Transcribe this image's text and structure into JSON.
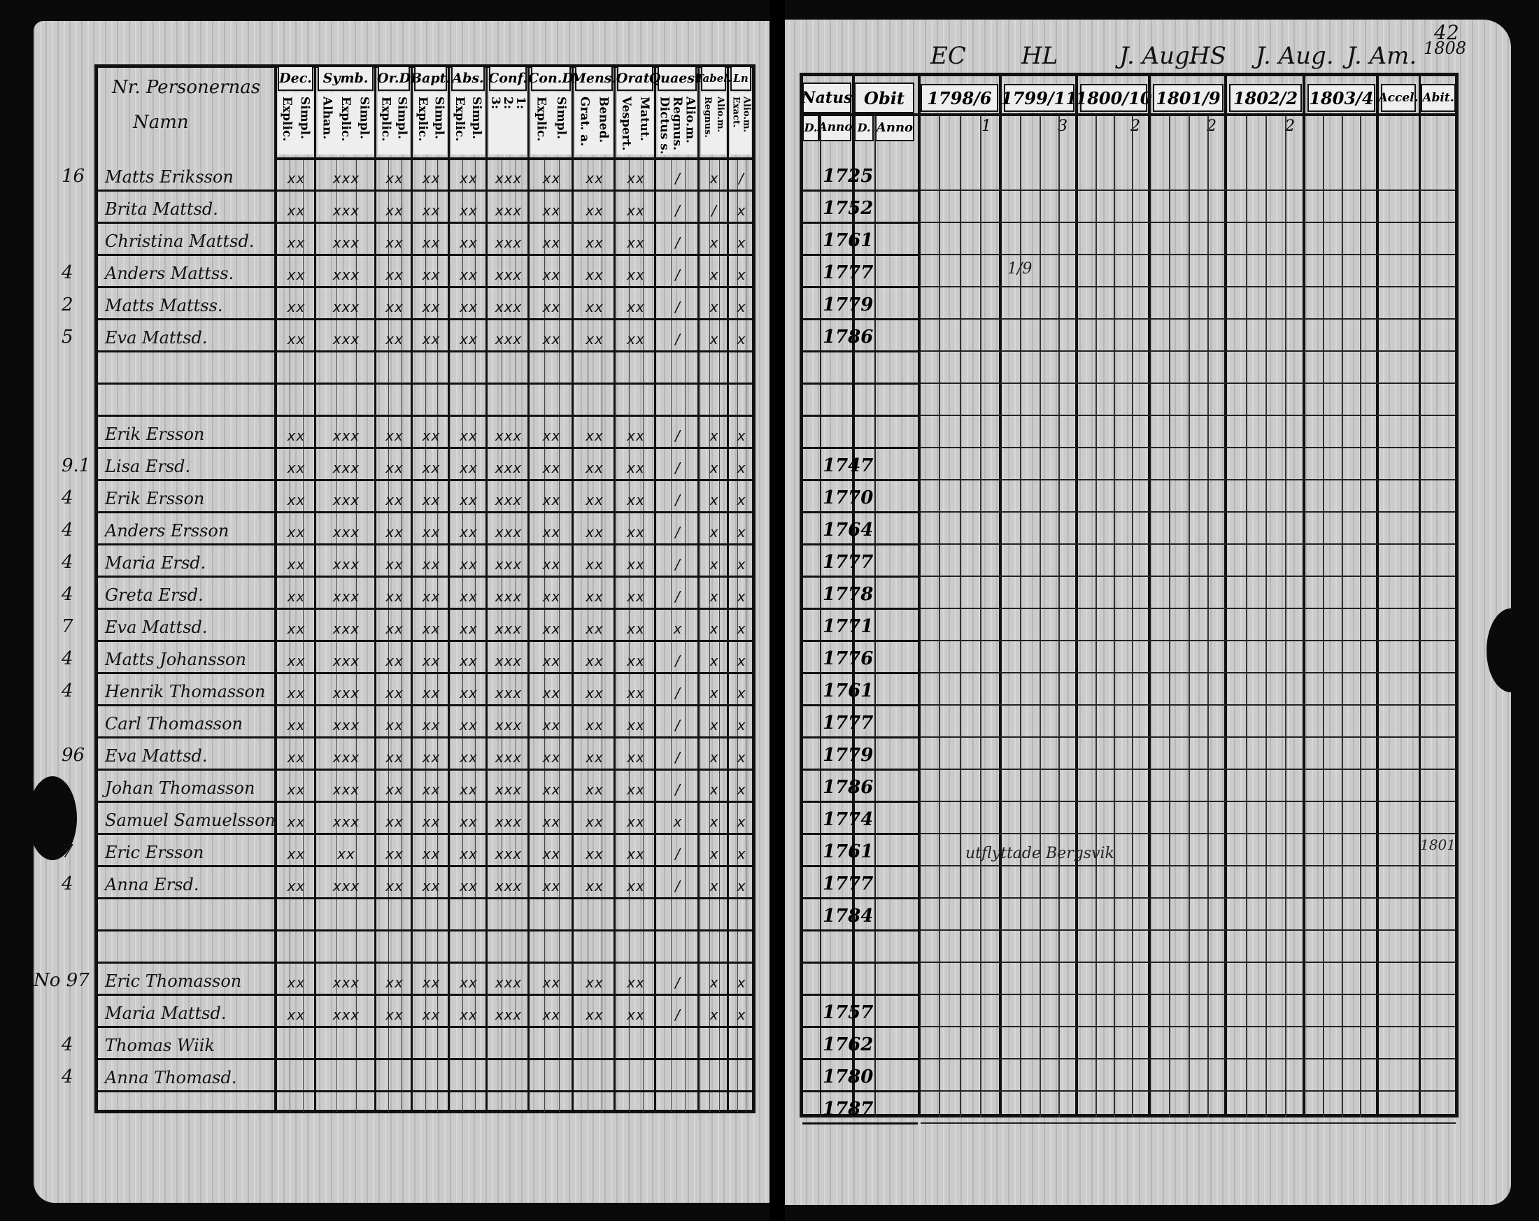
{
  "left_page": {
    "name_header": [
      "Nr. Personernas",
      "Namn"
    ],
    "columns": [
      {
        "head": "Dec.",
        "sub": [
          "Explic.",
          "Simpl."
        ]
      },
      {
        "head": "Symb.",
        "sub": [
          "Alhan.",
          "Explic.",
          "Simpl."
        ]
      },
      {
        "head": "Or.D",
        "sub": [
          "Explic.",
          "Simpl."
        ]
      },
      {
        "head": "Bapt.",
        "sub": [
          "Explic.",
          "Simpl."
        ]
      },
      {
        "head": "Abs.",
        "sub": [
          "Explic.",
          "Simpl."
        ]
      },
      {
        "head": "Conf.",
        "sub": [
          "3:",
          "2:",
          "1:"
        ]
      },
      {
        "head": "Con.D",
        "sub": [
          "Explic.",
          "Simpl."
        ]
      },
      {
        "head": "Mens.",
        "sub": [
          "Grat. a.",
          "Bened."
        ]
      },
      {
        "head": "Orat.",
        "sub": [
          "Vespert.",
          "Matut."
        ]
      },
      {
        "head": "Quaest.",
        "sub": [
          "Dictus s.",
          "Regnus.",
          "Alio.m."
        ]
      },
      {
        "head": "Tabel.",
        "sub": [
          "Regnus.",
          "Alio.m."
        ]
      },
      {
        "head": "Ln",
        "sub": [
          "Exact.",
          "Alio.m."
        ]
      }
    ],
    "rows": [
      {
        "margin": "16",
        "name": "Matts Eriksson",
        "marks": [
          "xx",
          "xxx",
          "xx",
          "xx",
          "xx",
          "xxx",
          "xx",
          "xx",
          "xx",
          "/",
          "x",
          "/"
        ]
      },
      {
        "margin": "",
        "name": "Brita Mattsd.",
        "marks": [
          "xx",
          "xxx",
          "xx",
          "xx",
          "xx",
          "xxx",
          "xx",
          "xx",
          "xx",
          "/",
          "/",
          "x"
        ]
      },
      {
        "margin": "",
        "name": "Christina Mattsd.",
        "marks": [
          "xx",
          "xxx",
          "xx",
          "xx",
          "xx",
          "xxx",
          "xx",
          "xx",
          "xx",
          "/",
          "x",
          "x"
        ]
      },
      {
        "margin": "4",
        "name": "Anders Mattss.",
        "marks": [
          "xx",
          "xxx",
          "xx",
          "xx",
          "xx",
          "xxx",
          "xx",
          "xx",
          "xx",
          "/",
          "x",
          "x"
        ]
      },
      {
        "margin": "2",
        "name": "Matts Mattss.",
        "marks": [
          "xx",
          "xxx",
          "xx",
          "xx",
          "xx",
          "xxx",
          "xx",
          "xx",
          "xx",
          "/",
          "x",
          "x"
        ]
      },
      {
        "margin": "5",
        "name": "Eva Mattsd.",
        "marks": [
          "xx",
          "xxx",
          "xx",
          "xx",
          "xx",
          "xxx",
          "xx",
          "xx",
          "xx",
          "/",
          "x",
          "x"
        ]
      },
      {
        "margin": "",
        "name": "",
        "marks": []
      },
      {
        "margin": "",
        "name": "",
        "marks": []
      },
      {
        "margin": "",
        "name": "Erik Ersson",
        "marks": [
          "xx",
          "xxx",
          "xx",
          "xx",
          "xx",
          "xxx",
          "xx",
          "xx",
          "xx",
          "/",
          "x",
          "x"
        ]
      },
      {
        "margin": "9.1",
        "name": "Lisa Ersd.",
        "marks": [
          "xx",
          "xxx",
          "xx",
          "xx",
          "xx",
          "xxx",
          "xx",
          "xx",
          "xx",
          "/",
          "x",
          "x"
        ]
      },
      {
        "margin": "4",
        "name": "Erik Ersson",
        "marks": [
          "xx",
          "xxx",
          "xx",
          "xx",
          "xx",
          "xxx",
          "xx",
          "xx",
          "xx",
          "/",
          "x",
          "x"
        ]
      },
      {
        "margin": "4",
        "name": "Anders Ersson",
        "marks": [
          "xx",
          "xxx",
          "xx",
          "xx",
          "xx",
          "xxx",
          "xx",
          "xx",
          "xx",
          "/",
          "x",
          "x"
        ]
      },
      {
        "margin": "4",
        "name": "Maria Ersd.",
        "marks": [
          "xx",
          "xxx",
          "xx",
          "xx",
          "xx",
          "xxx",
          "xx",
          "xx",
          "xx",
          "/",
          "x",
          "x"
        ]
      },
      {
        "margin": "4",
        "name": "Greta Ersd.",
        "marks": [
          "xx",
          "xxx",
          "xx",
          "xx",
          "xx",
          "xxx",
          "xx",
          "xx",
          "xx",
          "/",
          "x",
          "x"
        ]
      },
      {
        "margin": "7",
        "name": "Eva Mattsd.",
        "marks": [
          "xx",
          "xxx",
          "xx",
          "xx",
          "xx",
          "xxx",
          "xx",
          "xx",
          "xx",
          "x",
          "x",
          "x"
        ]
      },
      {
        "margin": "4",
        "name": "Matts Johansson",
        "marks": [
          "xx",
          "xxx",
          "xx",
          "xx",
          "xx",
          "xxx",
          "xx",
          "xx",
          "xx",
          "/",
          "x",
          "x"
        ]
      },
      {
        "margin": "4",
        "name": "Henrik Thomasson",
        "marks": [
          "xx",
          "xxx",
          "xx",
          "xx",
          "xx",
          "xxx",
          "xx",
          "xx",
          "xx",
          "/",
          "x",
          "x"
        ]
      },
      {
        "margin": "",
        "name": "Carl Thomasson",
        "marks": [
          "xx",
          "xxx",
          "xx",
          "xx",
          "xx",
          "xxx",
          "xx",
          "xx",
          "xx",
          "/",
          "x",
          "x"
        ]
      },
      {
        "margin": "96",
        "name": "Eva Mattsd.",
        "marks": [
          "xx",
          "xxx",
          "xx",
          "xx",
          "xx",
          "xxx",
          "xx",
          "xx",
          "xx",
          "/",
          "x",
          "x"
        ]
      },
      {
        "margin": "",
        "name": "Johan Thomasson",
        "marks": [
          "xx",
          "xxx",
          "xx",
          "xx",
          "xx",
          "xxx",
          "xx",
          "xx",
          "xx",
          "/",
          "x",
          "x"
        ]
      },
      {
        "margin": "",
        "name": "Samuel Samuelsson",
        "marks": [
          "xx",
          "xxx",
          "xx",
          "xx",
          "xx",
          "xxx",
          "xx",
          "xx",
          "xx",
          "x",
          "x",
          "x"
        ]
      },
      {
        "margin": "7",
        "name": "Eric Ersson",
        "marks": [
          "xx",
          "xx",
          "xx",
          "xx",
          "xx",
          "xxx",
          "xx",
          "xx",
          "xx",
          "/",
          "x",
          "x"
        ]
      },
      {
        "margin": "4",
        "name": "Anna Ersd.",
        "marks": [
          "xx",
          "xxx",
          "xx",
          "xx",
          "xx",
          "xxx",
          "xx",
          "xx",
          "xx",
          "/",
          "x",
          "x"
        ]
      },
      {
        "margin": "",
        "name": "",
        "marks": []
      },
      {
        "margin": "",
        "name": "",
        "marks": []
      },
      {
        "margin": "No 97",
        "name": "Eric Thomasson",
        "marks": [
          "xx",
          "xxx",
          "xx",
          "xx",
          "xx",
          "xxx",
          "xx",
          "xx",
          "xx",
          "/",
          "x",
          "x"
        ]
      },
      {
        "margin": "",
        "name": "Maria Mattsd.",
        "marks": [
          "xx",
          "xxx",
          "xx",
          "xx",
          "xx",
          "xxx",
          "xx",
          "xx",
          "xx",
          "/",
          "x",
          "x"
        ]
      },
      {
        "margin": "4",
        "name": "Thomas Wiik",
        "marks": []
      },
      {
        "margin": "4",
        "name": "Anna Thomasd.",
        "marks": []
      }
    ]
  },
  "right_page": {
    "folio": "42",
    "top_notes": [
      "EC",
      "HL",
      "J. Aug.",
      "HS",
      "J. Aug.",
      "J. Am.",
      "1808"
    ],
    "headers": {
      "natus": "Natus",
      "natus_d": "D.",
      "natus_anno": "Anno",
      "obit": "Obit",
      "obit_d": "D.",
      "obit_anno": "Anno",
      "years": [
        "1798/6",
        "1799/11",
        "1800/10",
        "1801/9",
        "1802/2",
        "1803/4"
      ],
      "year_subnotes": [
        "1",
        "3",
        "2",
        "2",
        "2",
        ""
      ],
      "accel": "Accel.",
      "abit": "Abit."
    },
    "birth_years": [
      "1725",
      "1752",
      "1761",
      "1777",
      "1779",
      "1786",
      "",
      "",
      "",
      "1747",
      "1770",
      "1764",
      "1777",
      "1778",
      "1771",
      "1776",
      "1761",
      "1777",
      "1779",
      "1786",
      "1774",
      "1761",
      "1777",
      "1784",
      "",
      "",
      "1757",
      "1762",
      "1780",
      "1787"
    ],
    "notes": {
      "moved": "utflyttade Bergsvik",
      "accel_year": "1801",
      "tally": "1/9"
    }
  }
}
